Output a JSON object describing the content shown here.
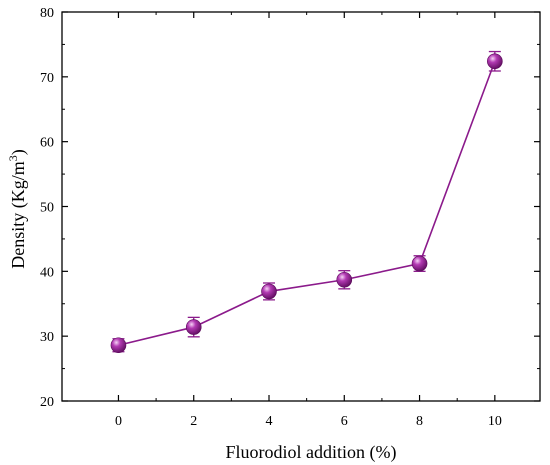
{
  "chart_data": {
    "type": "line",
    "title": "",
    "xlabel": "Fluorodiol addition (%)",
    "ylabel_main": "Density (Kg/m",
    "ylabel_sup": "3",
    "ylabel_close": ")",
    "xlim": [
      -1.5,
      11.2
    ],
    "ylim": [
      20,
      80
    ],
    "x_ticks": [
      0,
      2,
      4,
      6,
      8,
      10
    ],
    "x_tick_labels": [
      "0",
      "2",
      "4",
      "6",
      "8",
      "10"
    ],
    "y_ticks": [
      20,
      30,
      40,
      50,
      60,
      70,
      80
    ],
    "y_tick_labels": [
      "20",
      "30",
      "40",
      "50",
      "60",
      "70",
      "80"
    ],
    "grid": false,
    "series": [
      {
        "x": [
          0,
          2,
          4,
          6,
          8,
          10
        ],
        "values": [
          28.6,
          31.4,
          36.9,
          38.7,
          41.2,
          72.4
        ],
        "error": [
          1.0,
          1.5,
          1.3,
          1.4,
          1.2,
          1.5
        ],
        "color": "#8b1a8b",
        "marker": "sphere"
      }
    ]
  }
}
